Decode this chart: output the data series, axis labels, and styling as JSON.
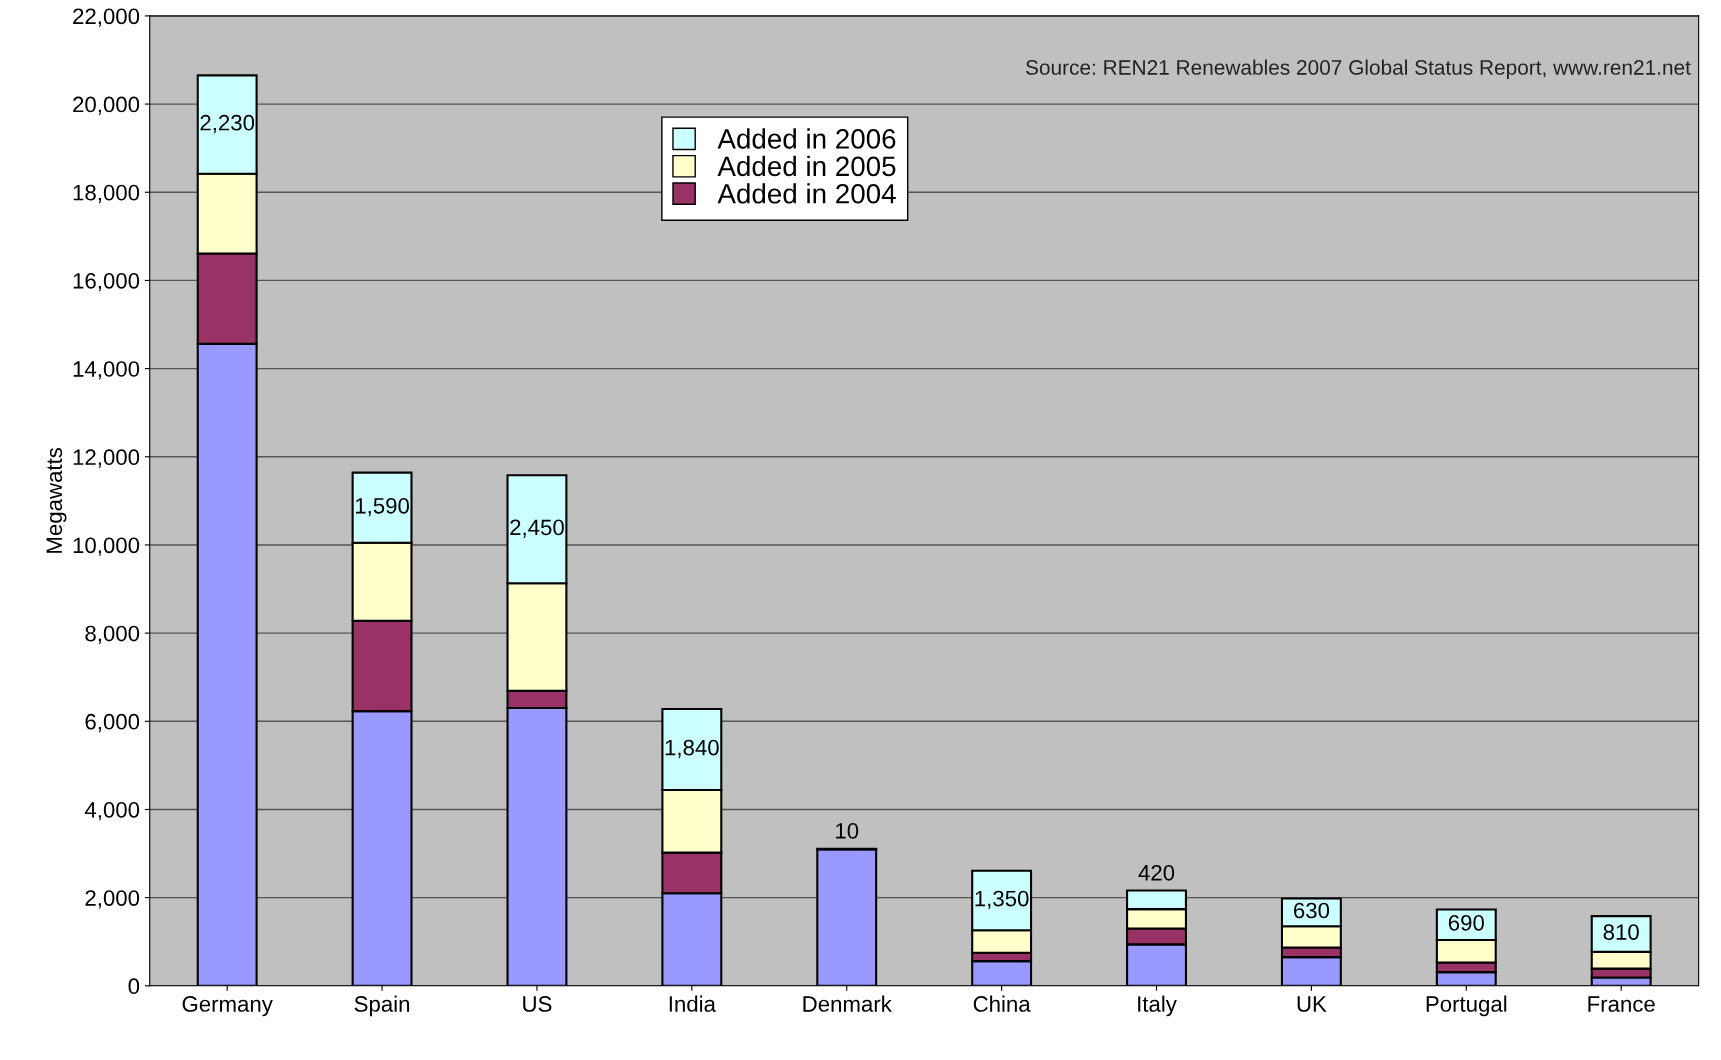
{
  "chart_data": {
    "type": "bar",
    "stacked": true,
    "ylabel": "Megawatts",
    "categories": [
      "Germany",
      "Spain",
      "US",
      "India",
      "Denmark",
      "China",
      "Italy",
      "UK",
      "Portugal",
      "France"
    ],
    "series": [
      {
        "color": "#9999ff",
        "values": [
          14560,
          6230,
          6300,
          2100,
          3100,
          560,
          940,
          650,
          310,
          190
        ]
      },
      {
        "name": "Added in 2004",
        "color": "#993366",
        "values": [
          2050,
          2050,
          390,
          920,
          0,
          190,
          360,
          220,
          220,
          200
        ]
      },
      {
        "name": "Added in 2005",
        "color": "#ffffcc",
        "values": [
          1810,
          1770,
          2440,
          1420,
          0,
          510,
          440,
          480,
          510,
          380
        ]
      },
      {
        "name": "Added in 2006",
        "color": "#ccffff",
        "values": [
          2230,
          1590,
          2450,
          1840,
          10,
          1350,
          420,
          630,
          690,
          810
        ],
        "value_labels": [
          "2,230",
          "1,590",
          "2,450",
          "1,840",
          "10",
          "1,350",
          "420",
          "630",
          "690",
          "810"
        ]
      }
    ],
    "ylim": [
      0,
      22000
    ],
    "yticks": [
      {
        "value": 0,
        "label": "0"
      },
      {
        "value": 2000,
        "label": "2,000"
      },
      {
        "value": 4000,
        "label": "4,000"
      },
      {
        "value": 6000,
        "label": "6,000"
      },
      {
        "value": 8000,
        "label": "8,000"
      },
      {
        "value": 10000,
        "label": "10,000"
      },
      {
        "value": 12000,
        "label": "12,000"
      },
      {
        "value": 14000,
        "label": "14,000"
      },
      {
        "value": 16000,
        "label": "16,000"
      },
      {
        "value": 18000,
        "label": "18,000"
      },
      {
        "value": 20000,
        "label": "20,000"
      },
      {
        "value": 22000,
        "label": "22,000"
      }
    ],
    "grid": "y",
    "legend": "top",
    "annotations": [
      "Source: REN21 Renewables 2007 Global Status Report, www.ren21.net"
    ]
  }
}
